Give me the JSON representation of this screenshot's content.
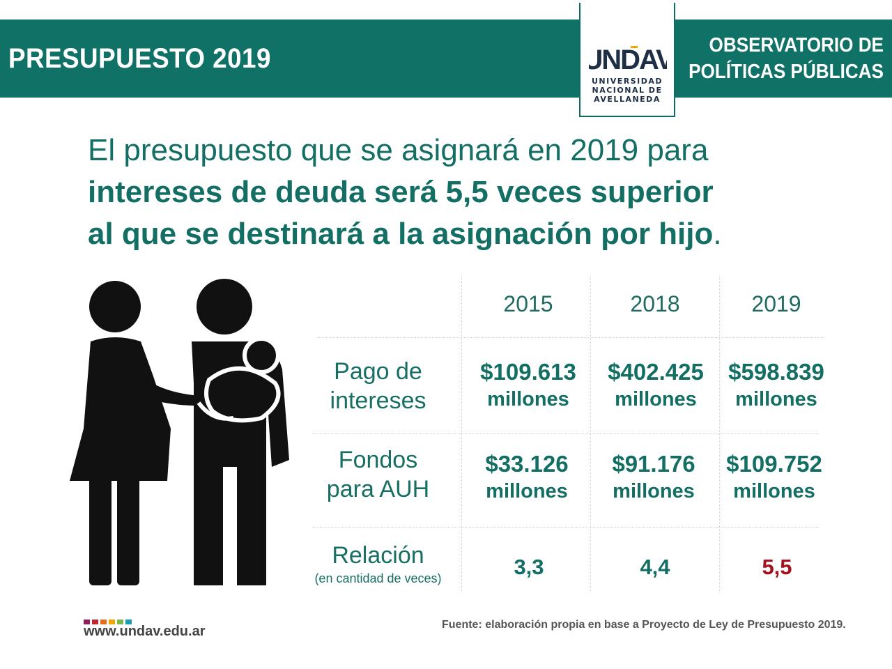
{
  "header": {
    "title": "PRESUPUESTO 2019",
    "observatorio_line1": "OBSERVATORIO DE",
    "observatorio_line2": "POLÍTICAS PÚBLICAS",
    "logo_text": "UNDAV",
    "logo_sub": [
      "UNIVERSIDAD",
      "NACIONAL DE",
      "AVELLANEDA"
    ],
    "color": "#107266"
  },
  "headline": {
    "part1": "El presupuesto que se asignará en 2019 para",
    "part2": "intereses de deuda será 5,5 veces superior",
    "part3": "al que se destinará a la asignación por hijo",
    "end": "."
  },
  "illustration": {
    "icon": "family-with-baby-icon"
  },
  "table": {
    "years": [
      "2015",
      "2018",
      "2019"
    ],
    "rows": [
      {
        "label_line1": "Pago de",
        "label_line2": "intereses",
        "values": [
          {
            "amount": "$109.613",
            "unit": "millones"
          },
          {
            "amount": "$402.425",
            "unit": "millones"
          },
          {
            "amount": "$598.839",
            "unit": "millones"
          }
        ]
      },
      {
        "label_line1": "Fondos",
        "label_line2": "para AUH",
        "values": [
          {
            "amount": "$33.126",
            "unit": "millones"
          },
          {
            "amount": "$91.176",
            "unit": "millones"
          },
          {
            "amount": "$109.752",
            "unit": "millones"
          }
        ]
      }
    ],
    "ratio": {
      "label": "Relación",
      "sub": "(en cantidad de veces)",
      "values": [
        "3,3",
        "4,4",
        "5,5"
      ]
    },
    "highlight_color": "#a3121e"
  },
  "footer": {
    "website": "www.undav.edu.ar",
    "source": "Fuente: elaboración propia en base a Proyecto de Ley de Presupuesto 2019.",
    "dot_colors": [
      "#8e1f5a",
      "#c1272d",
      "#e46c1e",
      "#f0a500",
      "#7ab648",
      "#1d9bb2"
    ]
  }
}
